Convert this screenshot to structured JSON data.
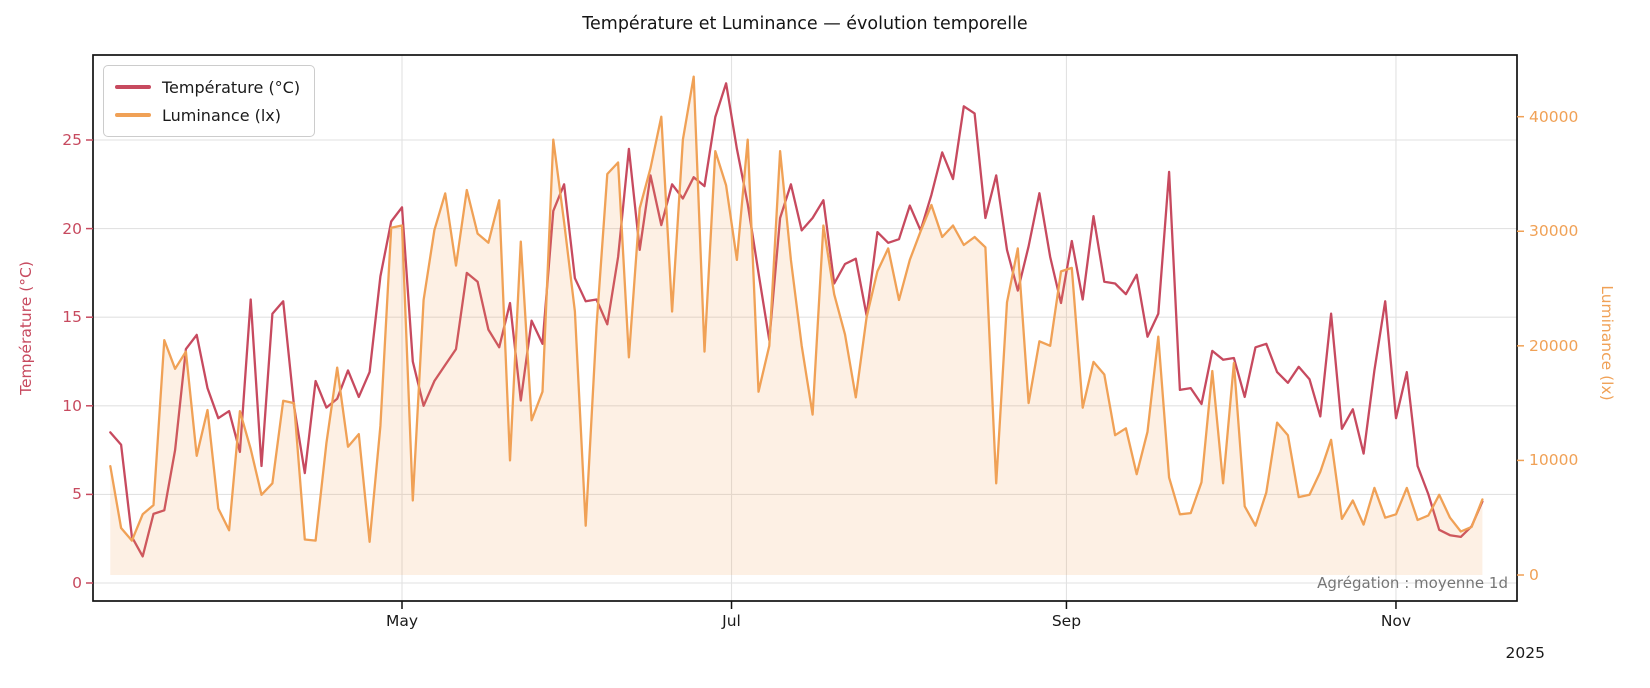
{
  "title": "Température et Luminance — évolution temporelle",
  "annotation": "Agrégation : moyenne 1d",
  "year_label": "2025",
  "legend": {
    "items": [
      {
        "label": "Température (°C)",
        "color": "#c74a5f"
      },
      {
        "label": "Luminance (lx)",
        "color": "#f0a156"
      }
    ]
  },
  "left_axis": {
    "label": "Température (°C)",
    "color": "#c74a5f",
    "tick_labels": [
      "0",
      "5",
      "10",
      "15",
      "20",
      "25"
    ],
    "tick_values": [
      0,
      5,
      10,
      15,
      20,
      25
    ],
    "range": [
      -1.0,
      29.8
    ]
  },
  "right_axis": {
    "label": "Luminance (lx)",
    "color": "#f0a156",
    "tick_labels": [
      "0",
      "10000",
      "20000",
      "30000",
      "40000"
    ],
    "tick_values": [
      0,
      10000,
      20000,
      30000,
      40000
    ],
    "range": [
      -2300,
      45400
    ]
  },
  "x_axis": {
    "tick_labels": [
      "May",
      "Jul",
      "Sep",
      "Nov"
    ],
    "tick_day_offsets": [
      54,
      115,
      177,
      238
    ]
  },
  "chart_data": {
    "type": "line",
    "title": "Température et Luminance — évolution temporelle",
    "subtitle": "Agrégation : moyenne 1d",
    "xlabel": "",
    "x_unit": "days from first sample (first sample ≈ 54 days before the May tick), sampled every 2 days",
    "sample_step_days": 2,
    "x_tick_labels": [
      "May",
      "Jul",
      "Sep",
      "Nov"
    ],
    "x_tick_day_offsets": [
      54,
      115,
      177,
      238
    ],
    "grid": true,
    "legend_position": "upper-left",
    "series": [
      {
        "name": "Température (°C)",
        "axis": "left",
        "color": "#c74a5f",
        "ylim": [
          -1.0,
          29.8
        ],
        "values": [
          8.5,
          7.8,
          2.6,
          1.5,
          3.9,
          4.1,
          7.5,
          13.2,
          14.0,
          11.0,
          9.3,
          9.7,
          7.4,
          16.0,
          6.6,
          15.2,
          15.9,
          10.0,
          6.2,
          11.4,
          9.9,
          10.4,
          12.0,
          10.5,
          11.9,
          17.3,
          20.4,
          21.2,
          12.5,
          10.0,
          11.4,
          12.3,
          13.2,
          17.5,
          17.0,
          14.3,
          13.3,
          15.8,
          10.3,
          14.8,
          13.5,
          21.0,
          22.5,
          17.2,
          15.9,
          16.0,
          14.6,
          18.4,
          24.5,
          18.8,
          23.0,
          20.2,
          22.5,
          21.7,
          22.9,
          22.4,
          26.3,
          28.2,
          24.5,
          21.4,
          17.5,
          13.7,
          20.6,
          22.5,
          19.9,
          20.6,
          21.6,
          16.9,
          18.0,
          18.3,
          15.1,
          19.8,
          19.2,
          19.4,
          21.3,
          19.9,
          21.9,
          24.3,
          22.8,
          26.9,
          26.5,
          20.6,
          23.0,
          18.8,
          16.5,
          19.0,
          22.0,
          18.4,
          15.8,
          19.3,
          16.0,
          20.7,
          17.0,
          16.9,
          16.3,
          17.4,
          13.9,
          15.2,
          23.2,
          10.9,
          11.0,
          10.1,
          13.1,
          12.6,
          12.7,
          10.5,
          13.3,
          13.5,
          11.9,
          11.3,
          12.2,
          11.5,
          9.4,
          15.2,
          8.7,
          9.8,
          7.3,
          12.0,
          15.9,
          9.3,
          11.9,
          6.6,
          5.0,
          3.0,
          2.7,
          2.6,
          3.2,
          4.6
        ]
      },
      {
        "name": "Luminance (lx)",
        "axis": "right",
        "color": "#f0a156",
        "fill_to_zero": true,
        "fill_opacity": 0.16,
        "ylim": [
          -2300,
          45400
        ],
        "values": [
          9500,
          4100,
          3000,
          5300,
          6100,
          20500,
          18000,
          19500,
          10400,
          14400,
          5800,
          3900,
          14300,
          11000,
          7000,
          8000,
          15200,
          15000,
          3100,
          3000,
          11500,
          18100,
          11200,
          12300,
          2900,
          13000,
          30300,
          30500,
          6500,
          24000,
          30100,
          33300,
          27000,
          33600,
          29800,
          29000,
          32700,
          10000,
          29100,
          13500,
          16000,
          38000,
          30800,
          23000,
          4300,
          21700,
          35000,
          36000,
          19000,
          32000,
          35500,
          40000,
          23000,
          38000,
          43500,
          19500,
          37000,
          34000,
          27500,
          38000,
          16000,
          20000,
          37000,
          27500,
          20000,
          14000,
          30500,
          24500,
          21000,
          15500,
          22500,
          26500,
          28500,
          24000,
          27500,
          30000,
          32300,
          29500,
          30500,
          28800,
          29500,
          28600,
          8000,
          23800,
          28500,
          15000,
          20400,
          20000,
          26500,
          26800,
          14600,
          18600,
          17500,
          12200,
          12800,
          8800,
          12500,
          20800,
          8500,
          5300,
          5400,
          8100,
          17800,
          8000,
          18500,
          6000,
          4300,
          7200,
          13300,
          12200,
          6800,
          7000,
          9000,
          11800,
          4900,
          6500,
          4400,
          7600,
          5000,
          5300,
          7600,
          4800,
          5200,
          7000,
          5000,
          3800,
          4200,
          6600
        ]
      }
    ]
  }
}
